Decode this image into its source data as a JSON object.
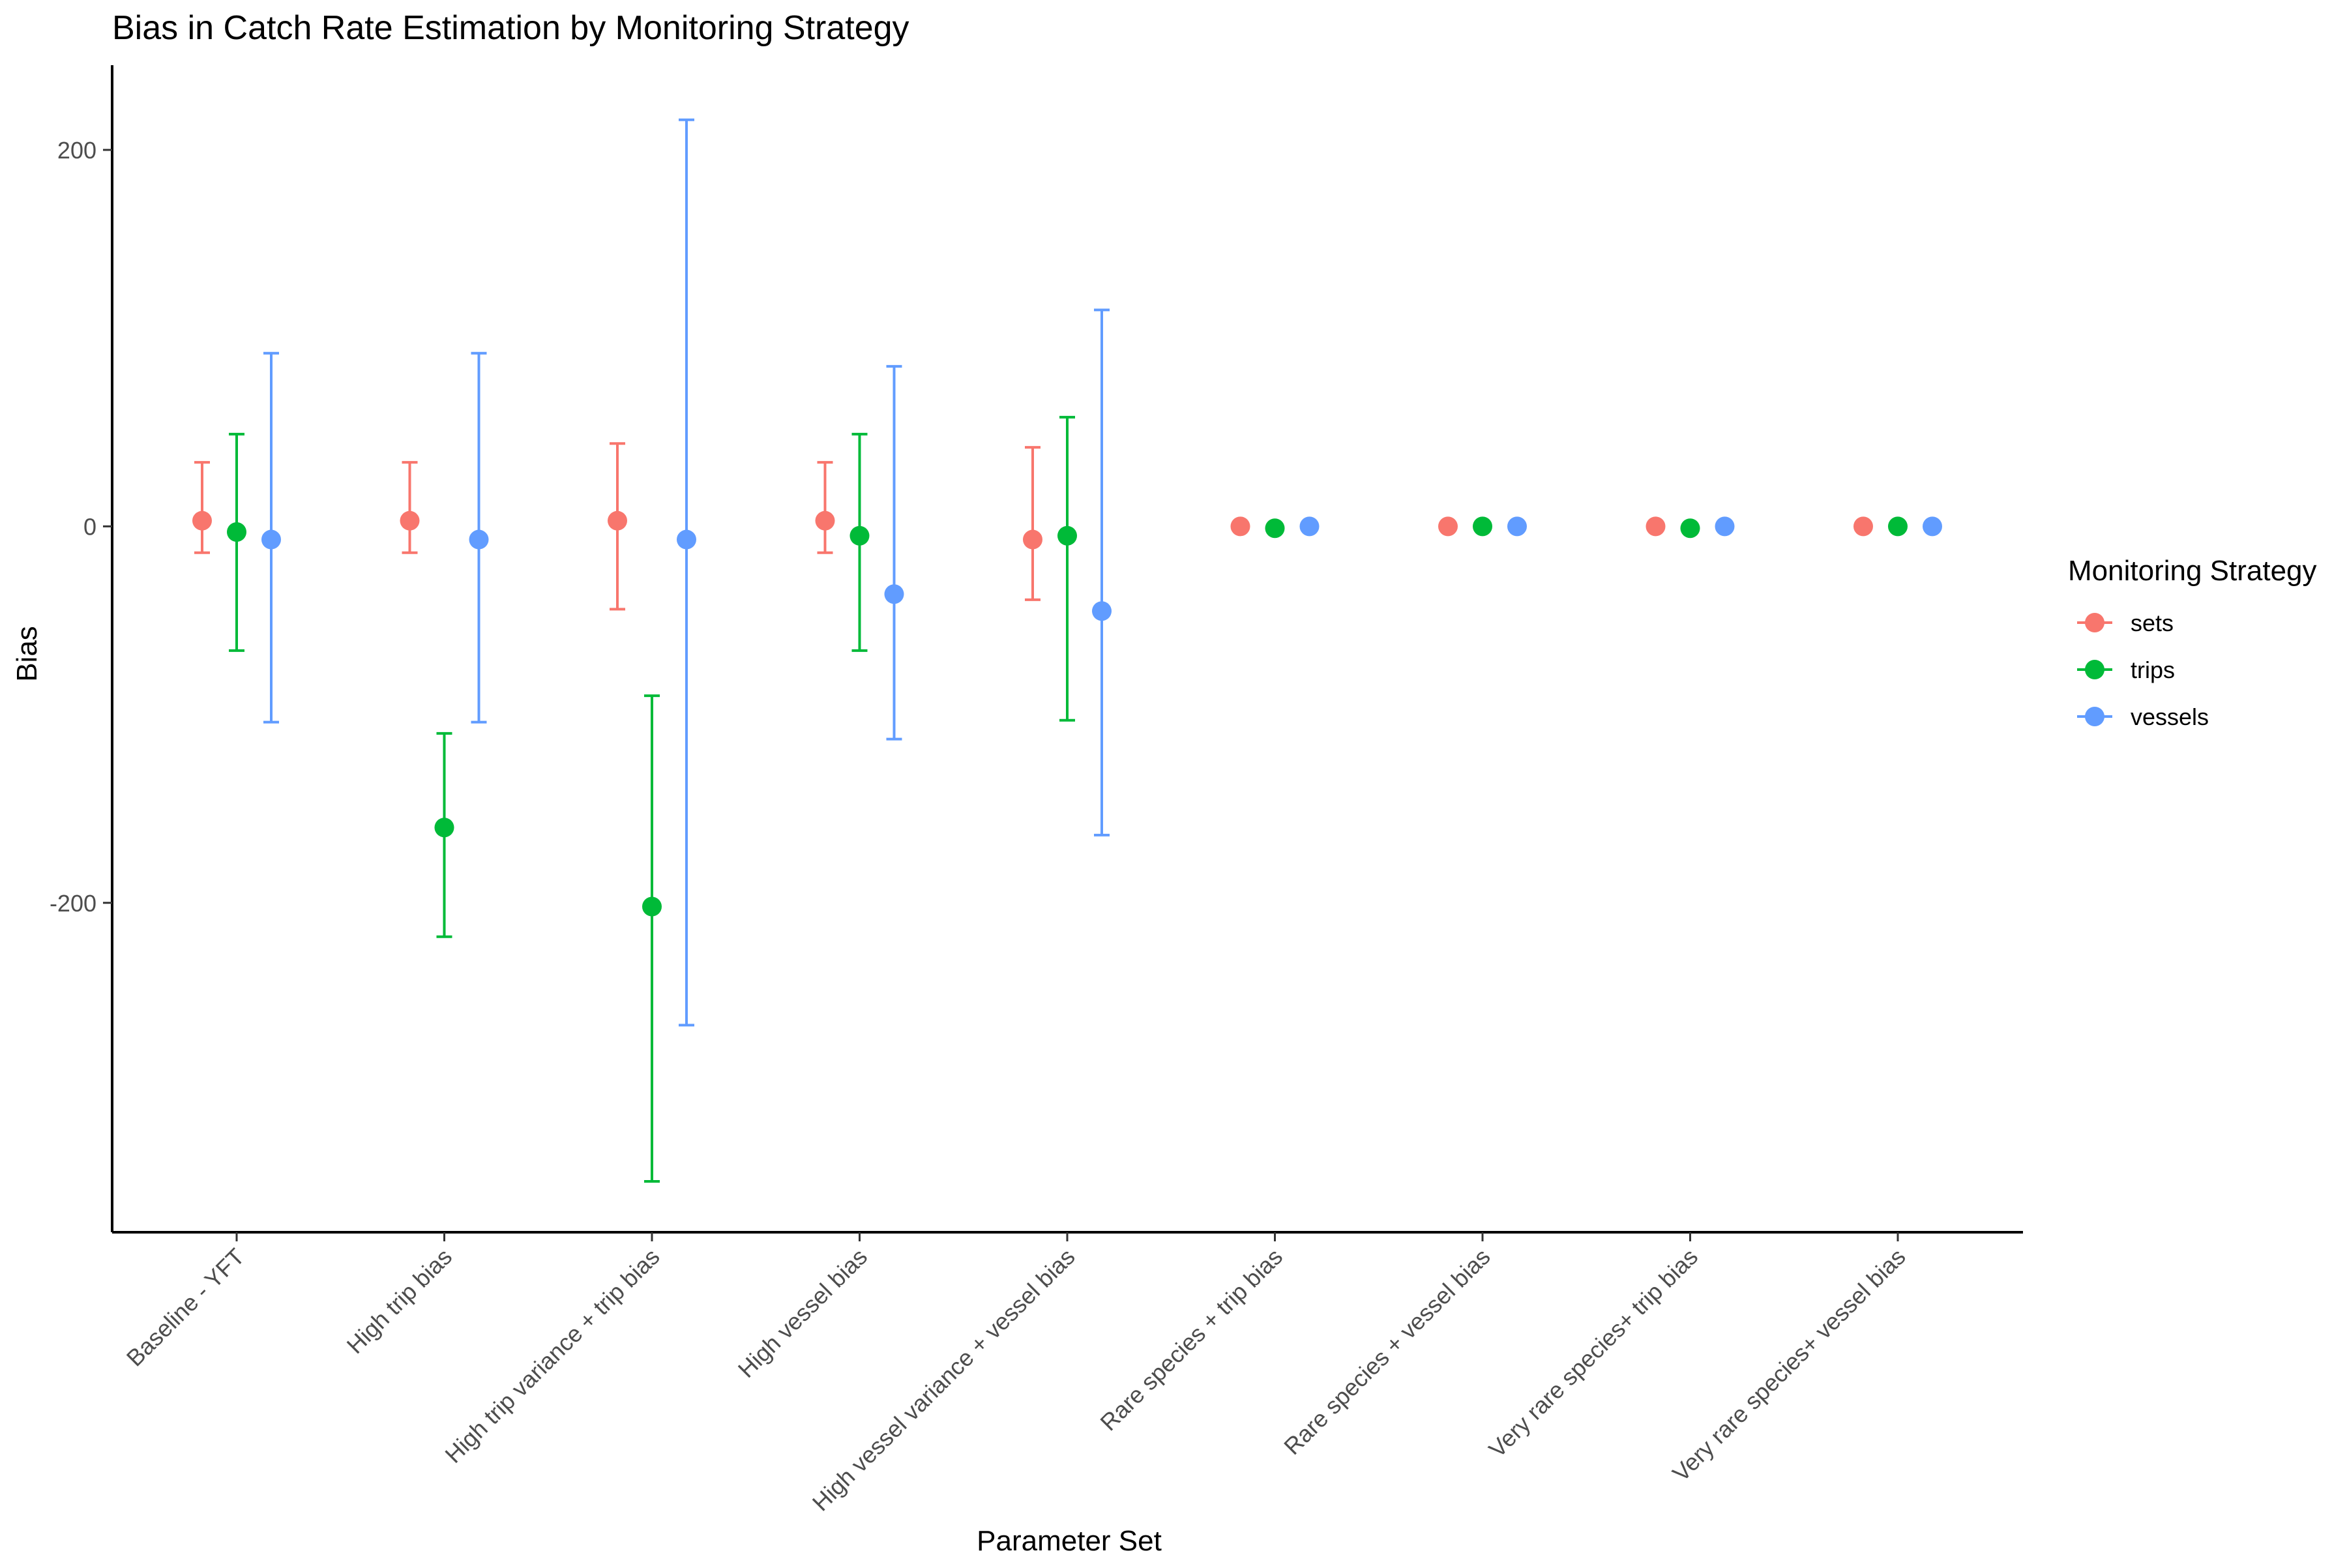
{
  "chart_data": {
    "type": "scatter",
    "title": "Bias in Catch Rate Estimation by Monitoring Strategy",
    "xlabel": "Parameter Set",
    "ylabel": "Bias",
    "categories": [
      "Baseline - YFT",
      "High trip bias",
      "High trip variance + trip bias",
      "High vessel bias",
      "High vessel variance + vessel bias",
      "Rare species + trip bias",
      "Rare species + vessel bias",
      "Very rare species+ trip bias",
      "Very rare species+ vessel bias"
    ],
    "ylim": [
      -375,
      245
    ],
    "yticks": [
      -200,
      0,
      200
    ],
    "ytick_labels": [
      "-200",
      "0",
      "200"
    ],
    "grid": false,
    "legend": {
      "title": "Monitoring Strategy",
      "position": "right"
    },
    "series": [
      {
        "name": "sets",
        "color": "#F8766D",
        "values": [
          3,
          3,
          3,
          3,
          -7,
          0,
          0,
          0,
          0
        ],
        "lower": [
          -14,
          -14,
          -44,
          -14,
          -39,
          null,
          null,
          null,
          null
        ],
        "upper": [
          34,
          34,
          44,
          34,
          42,
          null,
          null,
          null,
          null
        ]
      },
      {
        "name": "trips",
        "color": "#00BA38",
        "values": [
          -3,
          -160,
          -202,
          -5,
          -5,
          -1,
          0,
          -1,
          0
        ],
        "lower": [
          -66,
          -218,
          -348,
          -66,
          -103,
          null,
          null,
          null,
          null
        ],
        "upper": [
          49,
          -110,
          -90,
          49,
          58,
          null,
          null,
          null,
          null
        ]
      },
      {
        "name": "vessels",
        "color": "#619CFF",
        "values": [
          -7,
          -7,
          -7,
          -36,
          -45,
          0,
          0,
          0,
          0
        ],
        "lower": [
          -104,
          -104,
          -265,
          -113,
          -164,
          null,
          null,
          null,
          null
        ],
        "upper": [
          92,
          92,
          216,
          85,
          115,
          null,
          null,
          null,
          null
        ]
      }
    ]
  }
}
